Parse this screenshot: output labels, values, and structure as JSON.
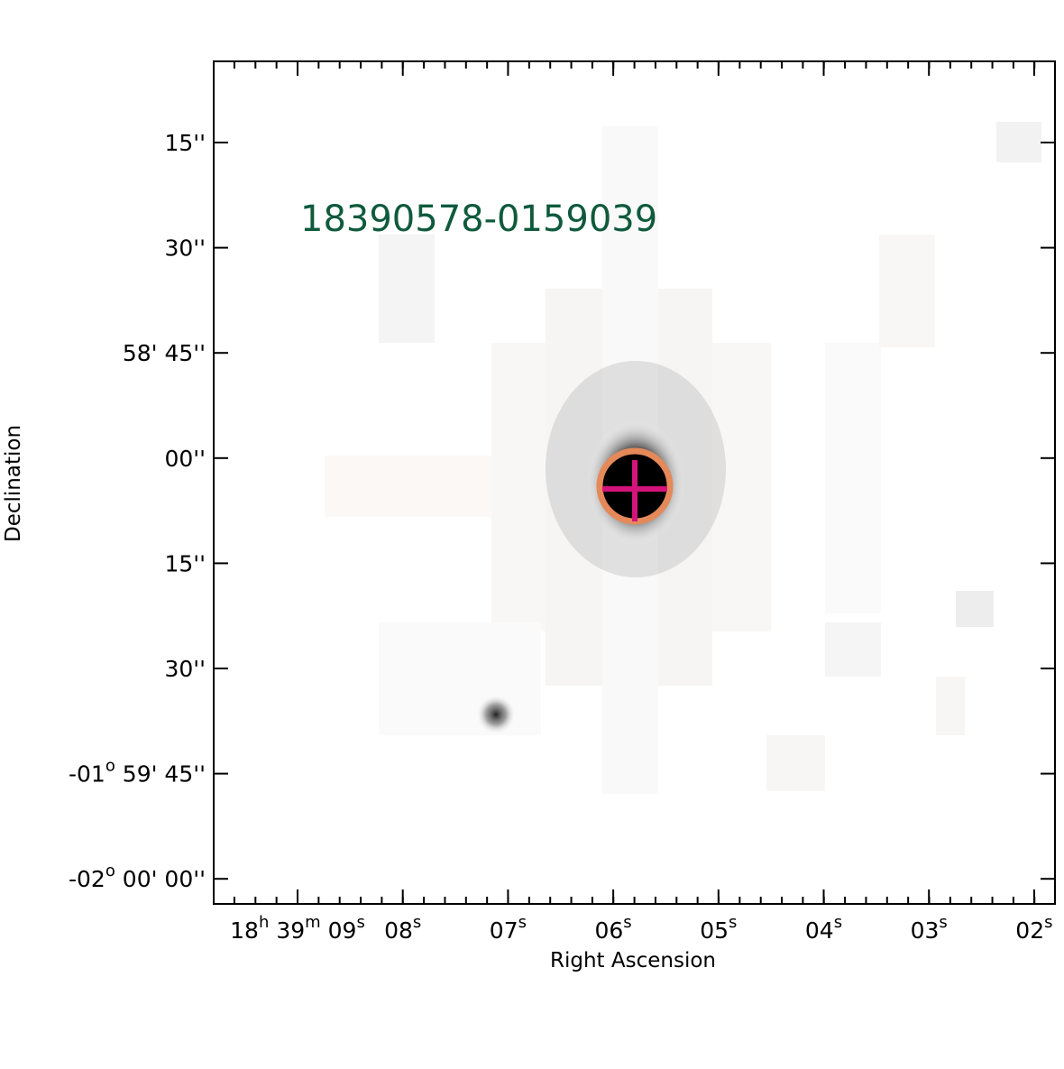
{
  "figure": {
    "source_label": "18390578-0159039",
    "x_label": "Right Ascension",
    "y_label": "Declination",
    "x_ticks": [
      [
        "18",
        "h",
        " 39",
        "m",
        " 09",
        "s"
      ],
      [
        "08",
        "s"
      ],
      [
        "07",
        "s"
      ],
      [
        "06",
        "s"
      ],
      [
        "05",
        "s"
      ],
      [
        "04",
        "s"
      ],
      [
        "03",
        "s"
      ],
      [
        "02",
        "s"
      ]
    ],
    "y_ticks": [
      [
        "15''"
      ],
      [
        "30''"
      ],
      [
        "58' 45''"
      ],
      [
        "00''"
      ],
      [
        "15''"
      ],
      [
        "30''"
      ],
      [
        "-01",
        "o",
        " 59' 45''"
      ],
      [
        "-02",
        "o",
        " 00' 00''"
      ]
    ]
  }
}
